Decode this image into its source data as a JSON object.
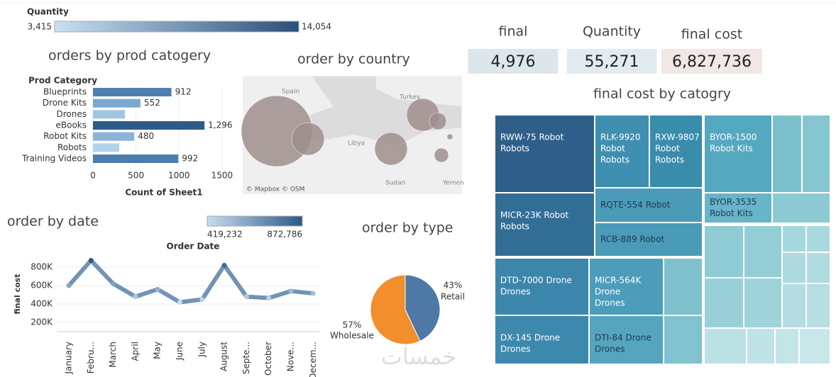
{
  "quantity_legend": {
    "title": "Quantity",
    "min": {
      "value": 3415,
      "label": "3,415"
    },
    "max": {
      "value": 14054,
      "label": "14,054"
    },
    "colors": [
      "#c9e0f2",
      "#2b4f7a"
    ]
  },
  "kpis": [
    {
      "title": "final",
      "value": "4,976",
      "color": "#dde6ea"
    },
    {
      "title": "Quantity",
      "value": "55,271",
      "color": "#e1ebf0"
    },
    {
      "title": "final cost",
      "value": "6,827,736",
      "color": "#f1e7e4"
    }
  ],
  "watermark": "خمسات",
  "chart_data": [
    {
      "type": "bar",
      "orientation": "horizontal",
      "title": "orders by prod catogery",
      "y_label": "Prod Category",
      "x_label": "Count of Sheet1",
      "categories": [
        "Blueprints",
        "Drone Kits",
        "Drones",
        "eBooks",
        "Robot Kits",
        "Robots",
        "Training Videos"
      ],
      "values": [
        912,
        552,
        372,
        1296,
        480,
        306,
        992
      ],
      "value_labels": [
        "912",
        "552",
        null,
        "1,296",
        "480",
        null,
        "992"
      ],
      "colors": [
        "#4f7fb0",
        "#7aa8cf",
        "#a2c6e2",
        "#2d5b8a",
        "#8ab5d8",
        "#b3d3ec",
        "#4a7cad"
      ],
      "xlim": [
        0,
        1600
      ],
      "xticks": [
        0,
        500,
        1000,
        1500
      ],
      "grid": true
    },
    {
      "type": "map",
      "title": "order by country",
      "labels": [
        "Spain",
        "Turkey",
        "Libya",
        "Sudan",
        "Yemen"
      ],
      "attribution": "© Mapbox © OSM",
      "color": "#9d8e8c"
    },
    {
      "type": "line",
      "title": "order by date",
      "y_label": "final cost",
      "x_label": "Order Date",
      "categories": [
        "January",
        "Febru...",
        "March",
        "April",
        "May",
        "June",
        "July",
        "August",
        "Septe...",
        "October",
        "Nove...",
        "Decem..."
      ],
      "values": [
        600000,
        872786,
        620000,
        480000,
        560000,
        419232,
        450000,
        820000,
        480000,
        465000,
        540000,
        515000
      ],
      "ylim": [
        100000,
        900000
      ],
      "yticks": [
        {
          "value": 200000,
          "label": "200K"
        },
        {
          "value": 400000,
          "label": "400K"
        },
        {
          "value": 600000,
          "label": "600K"
        },
        {
          "value": 800000,
          "label": "800K"
        }
      ],
      "color_legend": {
        "min": {
          "value": 419232,
          "label": "419,232"
        },
        "max": {
          "value": 872786,
          "label": "872,786"
        },
        "colors": [
          "#c6dbef",
          "#2b5a88"
        ]
      },
      "grid": true
    },
    {
      "type": "pie",
      "title": "order by type",
      "categories": [
        "Retail",
        "Wholesale"
      ],
      "values": [
        43,
        57
      ],
      "value_labels": [
        "43%",
        "57%"
      ],
      "colors": [
        "#4e79a7",
        "#f28e2b"
      ]
    },
    {
      "type": "treemap",
      "title": "final cost by catogry",
      "nodes": [
        {
          "lines": [
            "RWW-75 Robot",
            "Robots"
          ],
          "color": "#2e5f8a"
        },
        {
          "lines": [
            "RLK-9920",
            "Robot",
            "Robots"
          ],
          "color": "#3f8fb0"
        },
        {
          "lines": [
            "RXW-9807",
            "Robot",
            "Robots"
          ],
          "color": "#3a8cab"
        },
        {
          "lines": [
            "MICR-23K Robot",
            "Robots"
          ],
          "color": "#326d96"
        },
        {
          "lines": [
            "RQTE-554 Robot"
          ],
          "color": "#4a9bb8"
        },
        {
          "lines": [
            "RCB-889 Robot"
          ],
          "color": "#4a9bb8"
        },
        {
          "lines": [
            "DTD-7000 Drone",
            "Drones"
          ],
          "color": "#3c86ab"
        },
        {
          "lines": [
            "MICR-564K",
            "Drone",
            "Drones"
          ],
          "color": "#4c9cba"
        },
        {
          "lines": [
            "DX-145 Drone",
            "Drones"
          ],
          "color": "#3d88ad"
        },
        {
          "lines": [
            "DTI-84 Drone",
            "Drones"
          ],
          "color": "#56a5bf"
        },
        {
          "lines": [
            "BYOR-1500",
            "Robot Kits"
          ],
          "color": "#54a8c0"
        },
        {
          "lines": [
            "BYOR-3535",
            "Robot Kits"
          ],
          "color": "#68b4c8"
        }
      ]
    }
  ]
}
